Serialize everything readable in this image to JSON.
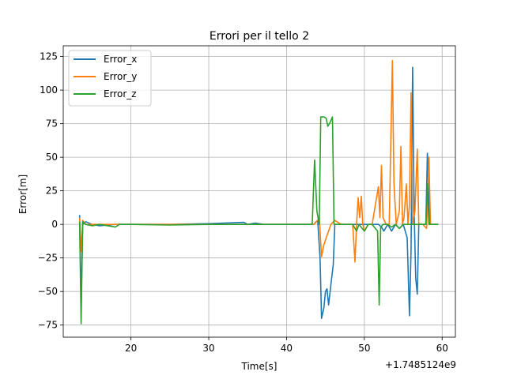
{
  "chart_data": {
    "type": "line",
    "title": "Errori per il tello 2",
    "xlabel": "Time[s]",
    "ylabel": "Error[m]",
    "x_offset_label": "+1.7485124e9",
    "xlim": [
      11.3,
      61.7
    ],
    "ylim": [
      -84,
      133
    ],
    "x_ticks": [
      20,
      30,
      40,
      50,
      60
    ],
    "y_ticks": [
      -75,
      -50,
      -25,
      0,
      25,
      50,
      75,
      100,
      125
    ],
    "grid": true,
    "legend": "upper-left",
    "series": [
      {
        "name": "Error_x",
        "color": "#1f77b4",
        "points": [
          [
            13.4,
            7
          ],
          [
            13.6,
            -60
          ],
          [
            13.8,
            0
          ],
          [
            14.2,
            2
          ],
          [
            15,
            0
          ],
          [
            16,
            -1
          ],
          [
            18,
            0
          ],
          [
            20,
            0
          ],
          [
            25,
            0
          ],
          [
            30,
            0.5
          ],
          [
            34.5,
            1.5
          ],
          [
            35,
            0
          ],
          [
            36,
            1
          ],
          [
            37,
            0
          ],
          [
            40,
            0
          ],
          [
            43.5,
            0
          ],
          [
            43.8,
            2
          ],
          [
            44,
            3
          ],
          [
            44.3,
            -25
          ],
          [
            44.5,
            -70
          ],
          [
            44.8,
            -62
          ],
          [
            45,
            -50
          ],
          [
            45.2,
            -48
          ],
          [
            45.4,
            -60
          ],
          [
            45.7,
            -45
          ],
          [
            46,
            -30
          ],
          [
            46.2,
            0
          ],
          [
            47,
            0
          ],
          [
            48,
            0
          ],
          [
            49,
            0
          ],
          [
            50,
            0
          ],
          [
            51,
            0
          ],
          [
            51.8,
            0
          ],
          [
            52.2,
            -2
          ],
          [
            52.5,
            -5
          ],
          [
            53,
            0
          ],
          [
            53.5,
            -5
          ],
          [
            54,
            0
          ],
          [
            54.5,
            -3
          ],
          [
            55,
            0
          ],
          [
            55.5,
            -10
          ],
          [
            55.8,
            -68
          ],
          [
            56,
            -20
          ],
          [
            56.2,
            117
          ],
          [
            56.4,
            10
          ],
          [
            56.6,
            -40
          ],
          [
            56.8,
            -52
          ],
          [
            57,
            0
          ],
          [
            57.5,
            0
          ],
          [
            57.9,
            0
          ],
          [
            58.1,
            53
          ],
          [
            58.4,
            0
          ],
          [
            59.5,
            0
          ]
        ]
      },
      {
        "name": "Error_y",
        "color": "#ff7f0e",
        "points": [
          [
            13.4,
            5
          ],
          [
            13.6,
            -20
          ],
          [
            13.8,
            3
          ],
          [
            14.2,
            0
          ],
          [
            15,
            0
          ],
          [
            20,
            0
          ],
          [
            30,
            0
          ],
          [
            40,
            0
          ],
          [
            43.5,
            0
          ],
          [
            44.0,
            3
          ],
          [
            44.2,
            5
          ],
          [
            44.5,
            -24
          ],
          [
            44.8,
            -15
          ],
          [
            45.1,
            -10
          ],
          [
            45.4,
            -5
          ],
          [
            45.7,
            0
          ],
          [
            46.2,
            3
          ],
          [
            47,
            0
          ],
          [
            48.5,
            0
          ],
          [
            48.8,
            -28
          ],
          [
            49.0,
            0
          ],
          [
            49.2,
            20
          ],
          [
            49.4,
            5
          ],
          [
            49.6,
            21
          ],
          [
            49.8,
            0
          ],
          [
            50,
            -5
          ],
          [
            50.5,
            0
          ],
          [
            51,
            0
          ],
          [
            51.8,
            28
          ],
          [
            52.0,
            5
          ],
          [
            52.2,
            44
          ],
          [
            52.4,
            5
          ],
          [
            52.8,
            0
          ],
          [
            53.2,
            0
          ],
          [
            53.6,
            122
          ],
          [
            53.8,
            30
          ],
          [
            54.1,
            0
          ],
          [
            54.5,
            10
          ],
          [
            54.7,
            58
          ],
          [
            54.9,
            0
          ],
          [
            55.1,
            5
          ],
          [
            55.4,
            30
          ],
          [
            55.6,
            0
          ],
          [
            55.8,
            15
          ],
          [
            56.0,
            98
          ],
          [
            56.2,
            0
          ],
          [
            56.5,
            10
          ],
          [
            56.8,
            56
          ],
          [
            57.0,
            0
          ],
          [
            57.5,
            0
          ],
          [
            58.0,
            -3
          ],
          [
            58.3,
            50
          ],
          [
            58.5,
            0
          ],
          [
            59.5,
            0
          ]
        ]
      },
      {
        "name": "Error_z",
        "color": "#2ca02c",
        "points": [
          [
            13.4,
            2
          ],
          [
            13.6,
            -74
          ],
          [
            13.8,
            2
          ],
          [
            14.2,
            0
          ],
          [
            15,
            -1
          ],
          [
            16,
            0
          ],
          [
            18,
            -2
          ],
          [
            18.5,
            0
          ],
          [
            20,
            0
          ],
          [
            25,
            -0.5
          ],
          [
            30,
            0
          ],
          [
            40,
            0
          ],
          [
            43.3,
            0
          ],
          [
            43.6,
            48
          ],
          [
            43.9,
            10
          ],
          [
            44.2,
            0
          ],
          [
            44.4,
            80
          ],
          [
            44.8,
            80
          ],
          [
            45.1,
            79
          ],
          [
            45.3,
            73
          ],
          [
            45.6,
            76
          ],
          [
            45.9,
            80
          ],
          [
            46.1,
            0
          ],
          [
            47,
            0
          ],
          [
            48.5,
            0
          ],
          [
            49,
            -5
          ],
          [
            49.3,
            0
          ],
          [
            50,
            -5
          ],
          [
            50.5,
            0
          ],
          [
            51,
            0
          ],
          [
            51.7,
            -5
          ],
          [
            51.9,
            -60
          ],
          [
            52.1,
            -2
          ],
          [
            52.4,
            0
          ],
          [
            53,
            0
          ],
          [
            53.5,
            -2
          ],
          [
            54,
            0
          ],
          [
            54.5,
            -3
          ],
          [
            55,
            0
          ],
          [
            56,
            0
          ],
          [
            57,
            0
          ],
          [
            57.9,
            0
          ],
          [
            58.1,
            30
          ],
          [
            58.3,
            0
          ],
          [
            59.5,
            0
          ]
        ]
      }
    ]
  }
}
